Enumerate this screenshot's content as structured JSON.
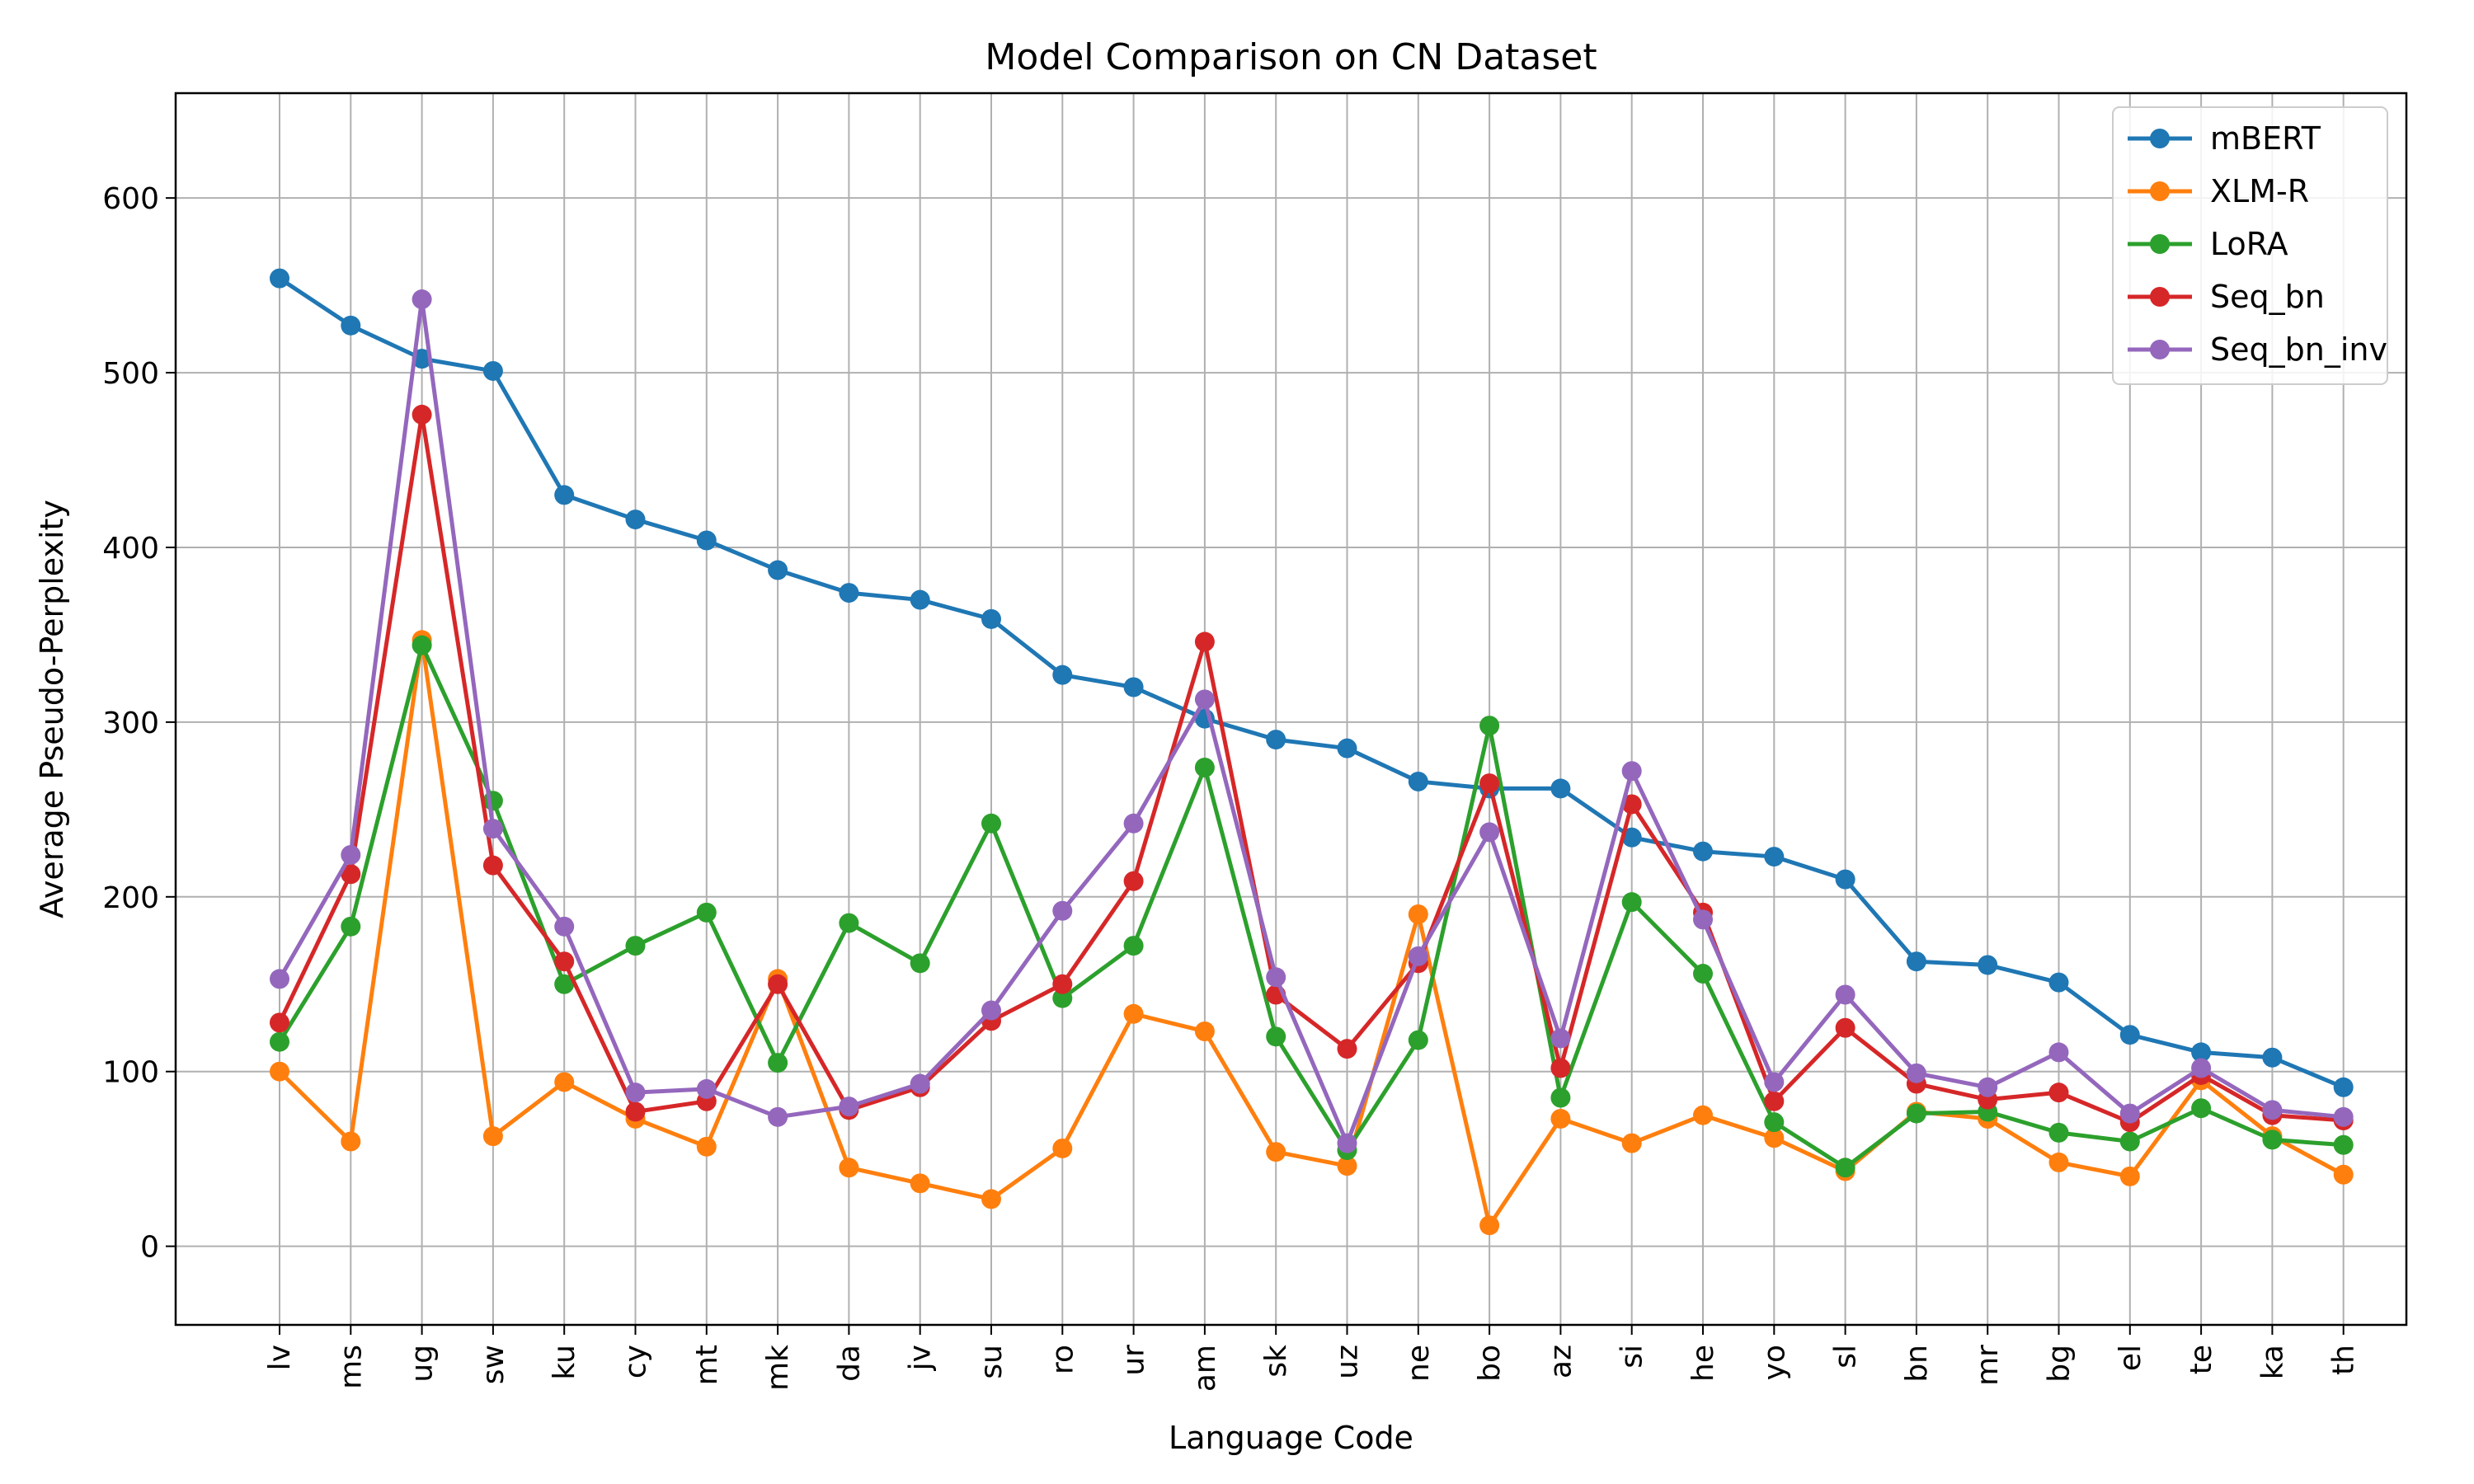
{
  "chart_data": {
    "type": "line",
    "title": "Model Comparison on CN Dataset",
    "xlabel": "Language Code",
    "ylabel": "Average Pseudo-Perplexity",
    "ylim": [
      -45,
      660
    ],
    "yticks": [
      0,
      100,
      200,
      300,
      400,
      500,
      600
    ],
    "grid": true,
    "legend_position": "top-right",
    "categories": [
      "lv",
      "ms",
      "ug",
      "sw",
      "ku",
      "cy",
      "mt",
      "mk",
      "da",
      "jv",
      "su",
      "ro",
      "ur",
      "am",
      "sk",
      "uz",
      "ne",
      "bo",
      "az",
      "si",
      "he",
      "yo",
      "sl",
      "bn",
      "mr",
      "bg",
      "el",
      "te",
      "ka",
      "th"
    ],
    "series": [
      {
        "name": "mBERT",
        "color": "#1f77b4",
        "values": [
          554,
          527,
          508,
          501,
          430,
          416,
          404,
          387,
          374,
          370,
          359,
          327,
          320,
          302,
          290,
          285,
          266,
          262,
          262,
          234,
          226,
          223,
          210,
          163,
          161,
          151,
          121,
          111,
          108,
          91
        ]
      },
      {
        "name": "XLM-R",
        "color": "#ff7f0e",
        "values": [
          100,
          60,
          347,
          63,
          94,
          73,
          57,
          153,
          45,
          36,
          27,
          56,
          133,
          123,
          54,
          46,
          190,
          12,
          73,
          59,
          75,
          62,
          43,
          77,
          73,
          48,
          40,
          95,
          63,
          41
        ]
      },
      {
        "name": "LoRA",
        "color": "#2ca02c",
        "values": [
          117,
          183,
          344,
          255,
          150,
          172,
          191,
          105,
          185,
          162,
          242,
          142,
          172,
          274,
          120,
          55,
          118,
          298,
          85,
          197,
          156,
          71,
          45,
          76,
          77,
          65,
          60,
          79,
          61,
          58
        ]
      },
      {
        "name": "Seq_bn",
        "color": "#d62728",
        "values": [
          128,
          213,
          476,
          218,
          163,
          77,
          83,
          150,
          78,
          91,
          129,
          150,
          209,
          346,
          144,
          113,
          162,
          265,
          102,
          253,
          191,
          83,
          125,
          93,
          84,
          88,
          71,
          98,
          75,
          72
        ]
      },
      {
        "name": "Seq_bn_inv",
        "color": "#9467bd",
        "values": [
          153,
          224,
          542,
          239,
          183,
          88,
          90,
          74,
          80,
          93,
          135,
          192,
          242,
          313,
          154,
          59,
          166,
          237,
          119,
          272,
          187,
          94,
          144,
          99,
          91,
          111,
          76,
          102,
          78,
          74
        ]
      }
    ]
  }
}
